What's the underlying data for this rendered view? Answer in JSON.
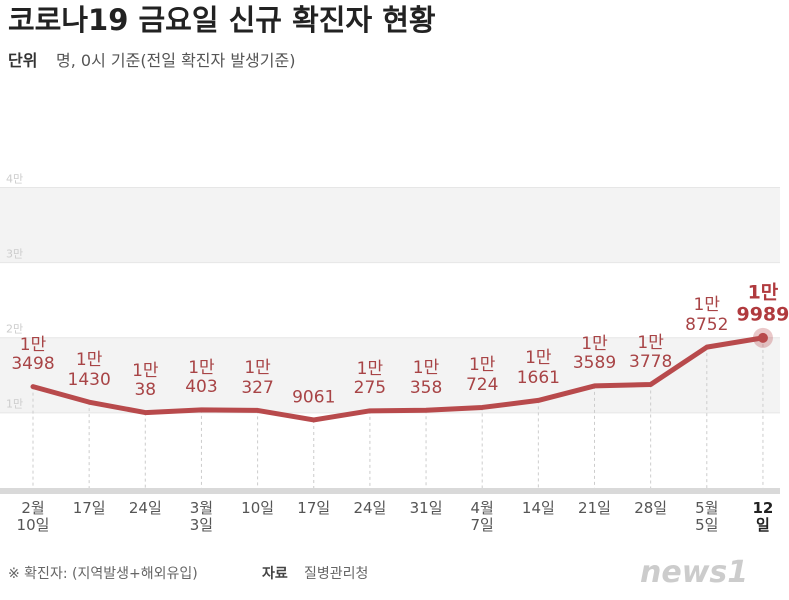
{
  "chart_data": {
    "type": "line",
    "title": "코로나19 금요일 신규 확진자 현황",
    "subtitle_label": "단위",
    "subtitle": "명, 0시 기준(전일 확진자 발생기준)",
    "categories": [
      "2월\n10일",
      "17일",
      "24일",
      "3월\n3일",
      "10일",
      "17일",
      "24일",
      "31일",
      "4월\n7일",
      "14일",
      "21일",
      "28일",
      "5월\n5일",
      "12일"
    ],
    "series": [
      {
        "name": "확진자",
        "color": "#b84a4c",
        "values": [
          13498,
          11430,
          10038,
          10403,
          10327,
          9061,
          10275,
          10358,
          10724,
          11661,
          13589,
          13778,
          18752,
          19989
        ],
        "value_labels": [
          "1만\n3498",
          "1만\n1430",
          "1만\n38",
          "1만\n403",
          "1만\n327",
          "9061",
          "1만\n275",
          "1만\n358",
          "1만\n724",
          "1만\n1661",
          "1만\n3589",
          "1만\n3778",
          "1만\n8752",
          "1만\n9989"
        ]
      }
    ],
    "ylim": [
      0,
      45000
    ],
    "yticks": [
      {
        "value": 10000,
        "label": "1만"
      },
      {
        "value": 20000,
        "label": "2만"
      },
      {
        "value": 30000,
        "label": "3만"
      },
      {
        "value": 40000,
        "label": "4만"
      }
    ],
    "grid": true,
    "footnote": "※ 확진자: (지역발생+해외유입)",
    "source_label": "자료",
    "source": "질병관리청",
    "logo": "news1"
  }
}
